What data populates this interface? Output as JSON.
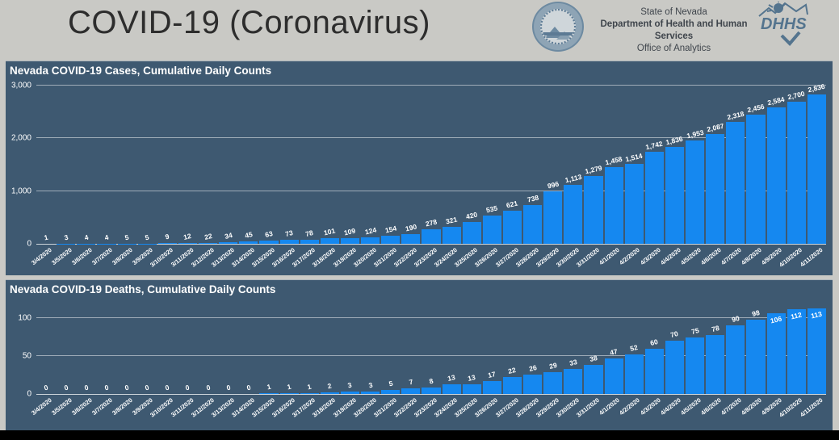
{
  "header": {
    "title": "COVID-19 (Coronavirus)",
    "org_line1": "State of Nevada",
    "org_line2": "Department of Health and Human Services",
    "org_line3": "Office of Analytics",
    "dhhs_logo_text": "DHHS"
  },
  "colors": {
    "header_bg": "#c9c9c5",
    "panel_bg": "#3e5971",
    "bar_blue": "#1588f0",
    "title_text": "#ffffff",
    "gridline": "rgba(255,255,255,0.5)",
    "logo_blue": "#54748e",
    "bottom_strip": "#000000"
  },
  "chart_data": [
    {
      "type": "bar",
      "title": "Nevada COVID-19 Cases, Cumulative Daily Counts",
      "xlabel": "",
      "ylabel": "",
      "ylim": [
        0,
        3000
      ],
      "grid": true,
      "legend": "none",
      "yticks": [
        {
          "value": 0,
          "label": "0"
        },
        {
          "value": 1000,
          "label": "1,000"
        },
        {
          "value": 2000,
          "label": "2,000"
        },
        {
          "value": 3000,
          "label": "3,000"
        }
      ],
      "categories": [
        "3/4/2020",
        "3/5/2020",
        "3/6/2020",
        "3/7/2020",
        "3/8/2020",
        "3/9/2020",
        "3/10/2020",
        "3/11/2020",
        "3/12/2020",
        "3/13/2020",
        "3/14/2020",
        "3/15/2020",
        "3/16/2020",
        "3/17/2020",
        "3/18/2020",
        "3/19/2020",
        "3/20/2020",
        "3/21/2020",
        "3/22/2020",
        "3/23/2020",
        "3/24/2020",
        "3/25/2020",
        "3/26/2020",
        "3/27/2020",
        "3/28/2020",
        "3/29/2020",
        "3/30/2020",
        "3/31/2020",
        "4/1/2020",
        "4/2/2020",
        "4/3/2020",
        "4/4/2020",
        "4/5/2020",
        "4/6/2020",
        "4/7/2020",
        "4/8/2020",
        "4/9/2020",
        "4/10/2020",
        "4/11/2020"
      ],
      "values": [
        1,
        3,
        4,
        4,
        5,
        5,
        9,
        12,
        22,
        34,
        45,
        63,
        73,
        78,
        101,
        109,
        124,
        154,
        190,
        278,
        321,
        420,
        535,
        621,
        738,
        996,
        1113,
        1279,
        1458,
        1514,
        1742,
        1836,
        1953,
        2087,
        2318,
        2456,
        2584,
        2700,
        2836
      ]
    },
    {
      "type": "bar",
      "title": "Nevada COVID-19 Deaths, Cumulative Daily Counts",
      "xlabel": "",
      "ylabel": "",
      "ylim": [
        0,
        120
      ],
      "grid": true,
      "legend": "none",
      "yticks": [
        {
          "value": 0,
          "label": "0"
        },
        {
          "value": 50,
          "label": "50"
        },
        {
          "value": 100,
          "label": "100"
        }
      ],
      "categories": [
        "3/4/2020",
        "3/5/2020",
        "3/6/2020",
        "3/7/2020",
        "3/8/2020",
        "3/9/2020",
        "3/10/2020",
        "3/11/2020",
        "3/12/2020",
        "3/13/2020",
        "3/14/2020",
        "3/15/2020",
        "3/16/2020",
        "3/17/2020",
        "3/18/2020",
        "3/19/2020",
        "3/20/2020",
        "3/21/2020",
        "3/22/2020",
        "3/23/2020",
        "3/24/2020",
        "3/25/2020",
        "3/26/2020",
        "3/27/2020",
        "3/28/2020",
        "3/29/2020",
        "3/30/2020",
        "3/31/2020",
        "4/1/2020",
        "4/2/2020",
        "4/3/2020",
        "4/4/2020",
        "4/5/2020",
        "4/6/2020",
        "4/7/2020",
        "4/8/2020",
        "4/9/2020",
        "4/10/2020",
        "4/11/2020"
      ],
      "values": [
        0,
        0,
        0,
        0,
        0,
        0,
        0,
        0,
        0,
        0,
        0,
        1,
        1,
        1,
        2,
        3,
        3,
        5,
        7,
        8,
        13,
        13,
        17,
        22,
        26,
        29,
        33,
        38,
        47,
        52,
        60,
        70,
        75,
        78,
        90,
        98,
        106,
        112,
        113
      ]
    }
  ]
}
